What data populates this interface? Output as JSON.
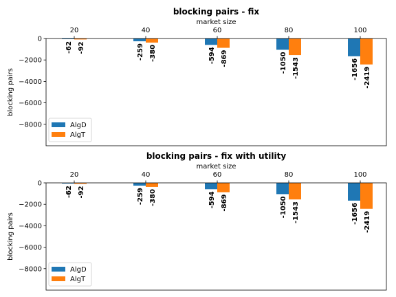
{
  "chart_data": [
    {
      "type": "bar",
      "title": "blocking pairs - fix",
      "xlabel": "market size",
      "ylabel": "blocking pairs",
      "categories": [
        "20",
        "40",
        "60",
        "80",
        "100"
      ],
      "series": [
        {
          "name": "AlgD",
          "color": "#1f77b4",
          "values": [
            -62,
            -259,
            -594,
            -1050,
            -1656
          ]
        },
        {
          "name": "AlgT",
          "color": "#ff7f0e",
          "values": [
            -92,
            -380,
            -869,
            -1543,
            -2419
          ]
        }
      ],
      "ylim": [
        -10000,
        0
      ],
      "yticks": [
        0,
        -2000,
        -4000,
        -6000,
        -8000
      ],
      "ytick_labels": [
        "0",
        "−2000",
        "−4000",
        "−6000",
        "−8000"
      ],
      "xaxis_position": "top",
      "legend": "bottom-left",
      "data_label_style": "bold-rotated"
    },
    {
      "type": "bar",
      "title": "blocking pairs - fix with utility",
      "xlabel": "market size",
      "ylabel": "blocking pairs",
      "categories": [
        "20",
        "40",
        "60",
        "80",
        "100"
      ],
      "series": [
        {
          "name": "AlgD",
          "color": "#1f77b4",
          "values": [
            -62,
            -259,
            -594,
            -1050,
            -1656
          ]
        },
        {
          "name": "AlgT",
          "color": "#ff7f0e",
          "values": [
            -92,
            -380,
            -869,
            -1543,
            -2419
          ]
        }
      ],
      "ylim": [
        -10000,
        0
      ],
      "yticks": [
        0,
        -2000,
        -4000,
        -6000,
        -8000
      ],
      "ytick_labels": [
        "0",
        "−2000",
        "−4000",
        "−6000",
        "−8000"
      ],
      "xaxis_position": "top",
      "legend": "bottom-left",
      "data_label_style": "bold-rotated"
    }
  ]
}
